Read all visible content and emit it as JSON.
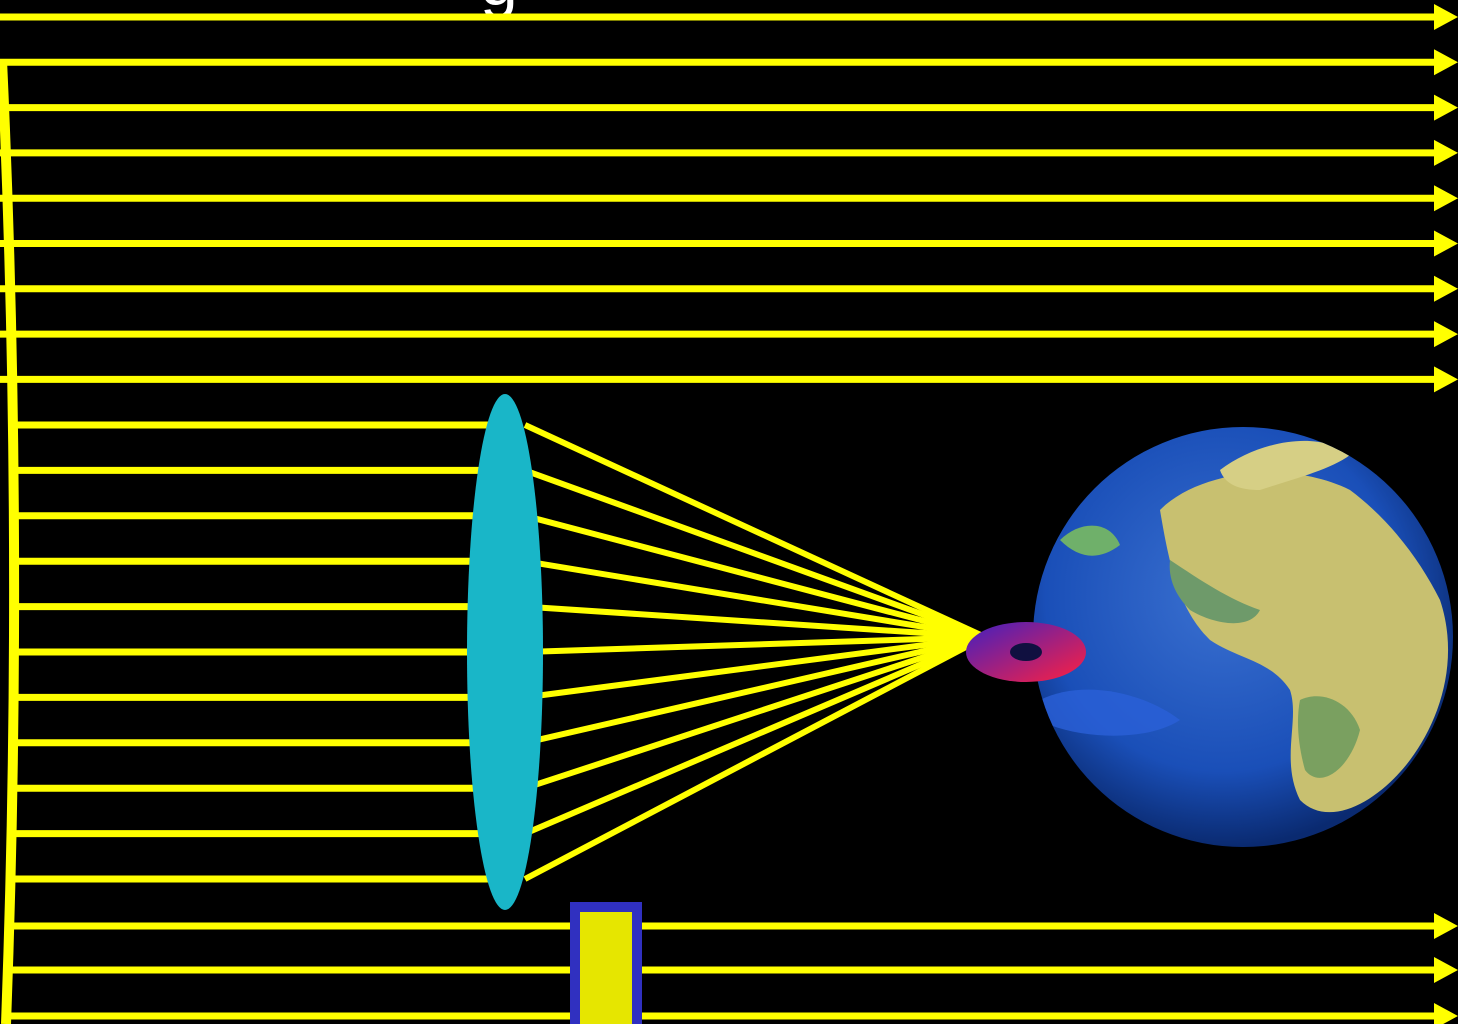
{
  "title_fragment": "g",
  "colors": {
    "background": "#000000",
    "ray": "#ffff00",
    "lens": "#19b6c8",
    "earth_ocean": "#1a4fb8",
    "earth_land": "#c8c070",
    "block_fill": "#e6e600",
    "block_border": "#3030c0",
    "eye_outer_a": "#4020c0",
    "eye_outer_b": "#ff2040",
    "eye_pupil": "#101040"
  },
  "icons": {
    "lens": "convex-lens-icon",
    "eye": "eye-icon",
    "earth": "earth-globe-icon",
    "block": "obstacle-block-icon",
    "wavefront": "wavefront-icon"
  }
}
